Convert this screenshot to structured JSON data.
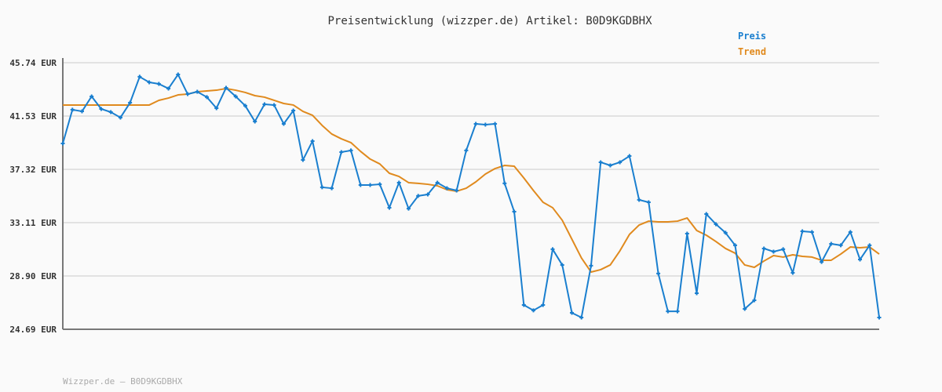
{
  "chart_data": {
    "type": "line",
    "title": "Preisentwicklung (wizzper.de) Artikel: B0D9KGDBHX",
    "xlabel": "",
    "ylabel": "",
    "ylim": [
      24.69,
      45.74
    ],
    "yticks": [
      "45.74 EUR",
      "41.53 EUR",
      "37.32 EUR",
      "33.11 EUR",
      "28.90 EUR",
      "24.69 EUR"
    ],
    "ytick_values": [
      45.74,
      41.53,
      37.32,
      33.11,
      28.9,
      24.69
    ],
    "grid": true,
    "legend_placement": "top-right",
    "series": [
      {
        "name": "Preis",
        "color": "#1a7fcf",
        "markers": true,
        "values": [
          39.36,
          42.03,
          41.9,
          43.08,
          42.09,
          41.84,
          41.41,
          42.58,
          44.63,
          44.19,
          44.07,
          43.7,
          44.81,
          43.26,
          43.45,
          43.02,
          42.15,
          43.76,
          43.08,
          42.34,
          41.1,
          42.46,
          42.4,
          40.91,
          41.96,
          38.06,
          39.55,
          35.9,
          35.83,
          38.68,
          38.81,
          36.08,
          36.08,
          36.14,
          34.29,
          36.27,
          34.22,
          35.22,
          35.34,
          36.27,
          35.83,
          35.65,
          38.81,
          40.91,
          40.85,
          40.91,
          36.21,
          33.98,
          26.61,
          26.18,
          26.61,
          31.01,
          29.77,
          25.99,
          25.62,
          29.71,
          37.88,
          37.63,
          37.88,
          38.37,
          34.91,
          34.72,
          29.09,
          26.11,
          26.11,
          32.24,
          27.54,
          33.79,
          32.99,
          32.31,
          31.32,
          26.3,
          26.98,
          31.07,
          30.82,
          31.01,
          29.15,
          32.43,
          32.37,
          30.01,
          31.44,
          31.32,
          32.37,
          30.2,
          31.32,
          25.62
        ]
      },
      {
        "name": "Trend",
        "color": "#e08a1e",
        "markers": false,
        "values": [
          42.4,
          42.4,
          42.4,
          42.4,
          42.4,
          42.4,
          42.4,
          42.4,
          42.4,
          42.4,
          42.77,
          42.95,
          43.2,
          43.26,
          43.45,
          43.51,
          43.57,
          43.7,
          43.57,
          43.39,
          43.14,
          43.02,
          42.77,
          42.52,
          42.4,
          41.9,
          41.59,
          40.79,
          40.11,
          39.73,
          39.43,
          38.74,
          38.13,
          37.75,
          37.01,
          36.76,
          36.27,
          36.21,
          36.14,
          36.02,
          35.71,
          35.59,
          35.83,
          36.33,
          36.95,
          37.38,
          37.63,
          37.57,
          36.64,
          35.65,
          34.72,
          34.29,
          33.3,
          31.81,
          30.32,
          29.21,
          29.4,
          29.77,
          30.88,
          32.18,
          32.92,
          33.23,
          33.17,
          33.17,
          33.23,
          33.48,
          32.49,
          32.12,
          31.62,
          31.07,
          30.7,
          29.77,
          29.58,
          30.08,
          30.51,
          30.39,
          30.57,
          30.45,
          30.39,
          30.14,
          30.14,
          30.63,
          31.19,
          31.13,
          31.19,
          30.63
        ]
      }
    ]
  },
  "footer": "Wizzper.de – B0D9KGDBHX"
}
